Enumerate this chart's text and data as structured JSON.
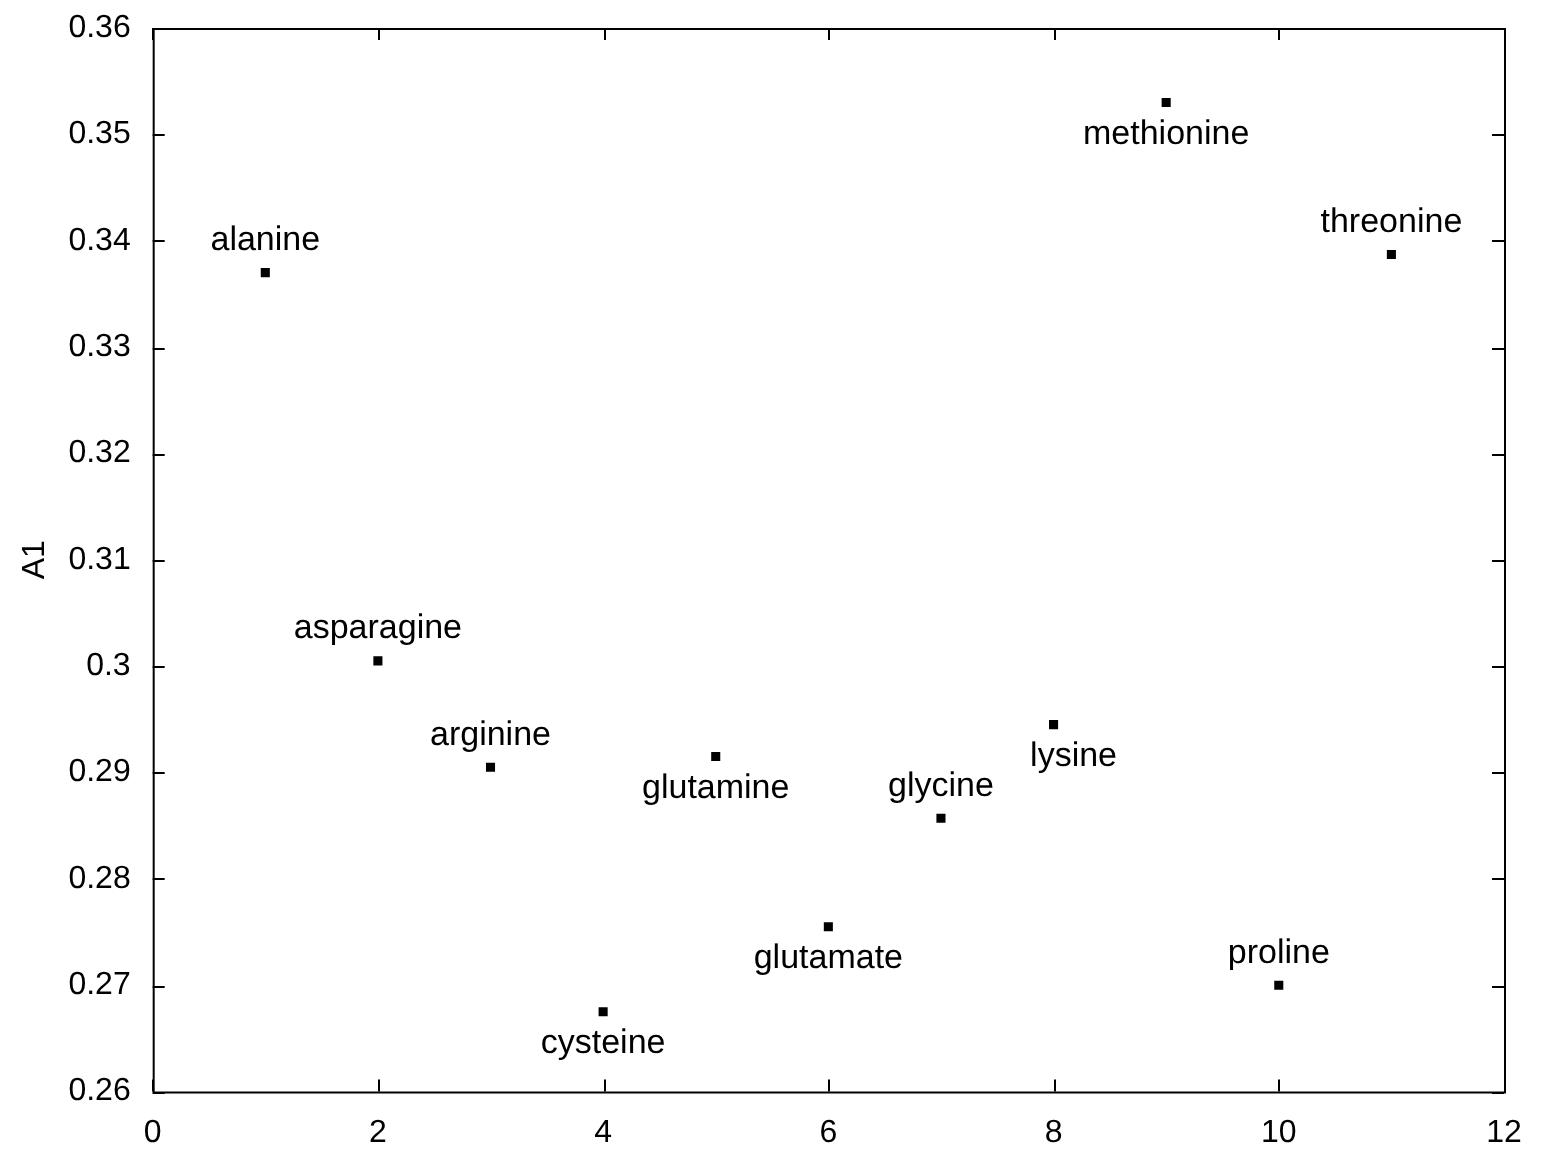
{
  "chart_data": {
    "type": "scatter",
    "ylabel": "A1",
    "x": [
      1,
      2,
      3,
      4,
      5,
      6,
      7,
      8,
      9,
      10,
      11
    ],
    "values": [
      0.337,
      0.3005,
      0.2905,
      0.2675,
      0.2915,
      0.2755,
      0.2857,
      0.2945,
      0.353,
      0.27,
      0.3387
    ],
    "color": "#000000",
    "marker": "square",
    "grid": false,
    "legend": false,
    "xlim": [
      0,
      12
    ],
    "xticks": [
      0,
      2,
      4,
      6,
      8,
      10,
      12
    ],
    "ylim": [
      0.26,
      0.36
    ],
    "yticks": [
      0.26,
      0.27,
      0.28,
      0.29,
      0.3,
      0.31,
      0.32,
      0.33,
      0.34,
      0.35,
      0.36
    ],
    "annotations": [
      {
        "text": "alanine",
        "x": 1,
        "y": 0.337
      },
      {
        "text": "asparagine",
        "x": 2,
        "y": 0.3005
      },
      {
        "text": "arginine",
        "x": 3,
        "y": 0.2905
      },
      {
        "text": "cysteine",
        "x": 4,
        "y": 0.2675
      },
      {
        "text": "glutamine",
        "x": 5,
        "y": 0.2915
      },
      {
        "text": "glutamate",
        "x": 6,
        "y": 0.2755
      },
      {
        "text": "glycine",
        "x": 7,
        "y": 0.2857
      },
      {
        "text": "lysine",
        "x": 8,
        "y": 0.2945
      },
      {
        "text": "methionine",
        "x": 9,
        "y": 0.353
      },
      {
        "text": "proline",
        "x": 10,
        "y": 0.27
      },
      {
        "text": "threonine",
        "x": 11,
        "y": 0.3387
      }
    ]
  }
}
